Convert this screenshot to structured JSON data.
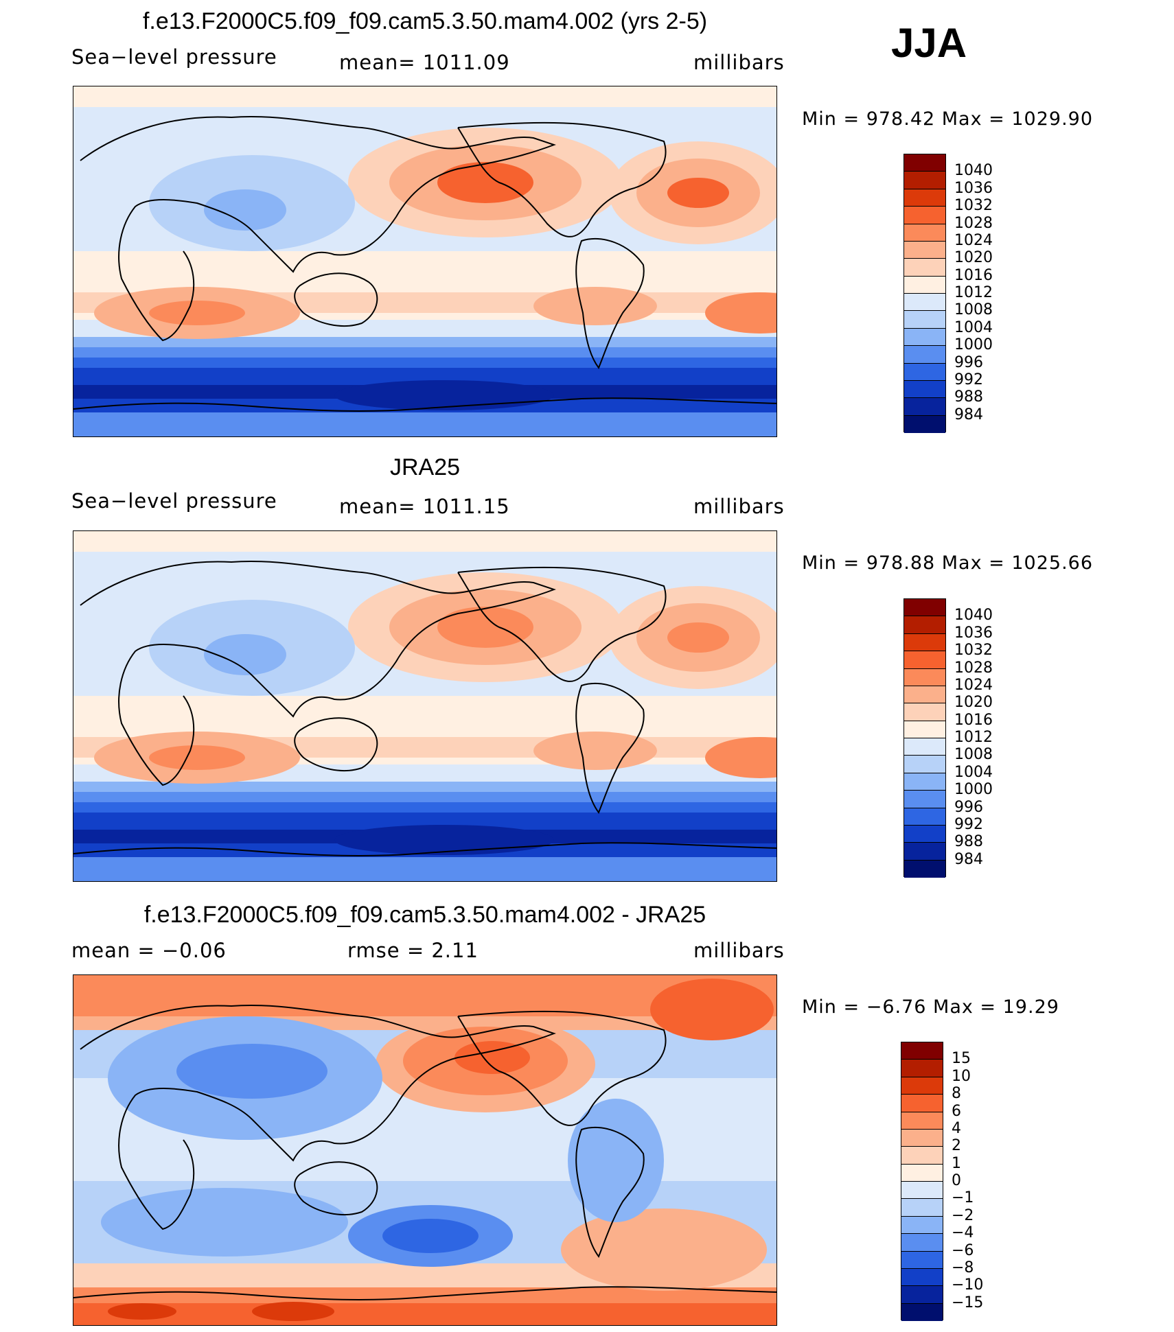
{
  "season": "JJA",
  "chart_data": [
    {
      "type": "heatmap",
      "title": "f.e13.F2000C5.f09_f09.cam5.3.50.mam4.002 (yrs 2-5)",
      "left_label": "Sea−level pressure",
      "center_label": "mean=  1011.09",
      "units": "millibars",
      "min_max": "Min  =  978.42  Max  =  1029.90",
      "colorbar_levels": [
        "1040",
        "1036",
        "1032",
        "1028",
        "1024",
        "1020",
        "1016",
        "1012",
        "1008",
        "1004",
        "1000",
        "996",
        "992",
        "988",
        "984"
      ],
      "colors": [
        "#800000",
        "#b31e00",
        "#dc3a0a",
        "#f6622f",
        "#fb8a5a",
        "#fbb08b",
        "#fdd2b9",
        "#fff0e2",
        "#dce9fa",
        "#b7d2f8",
        "#8ab4f6",
        "#5a8ef0",
        "#2e66e3",
        "#1240c8",
        "#07239d",
        "#000f6e"
      ]
    },
    {
      "type": "heatmap",
      "title": "JRA25",
      "left_label": "Sea−level pressure",
      "center_label": "mean=  1011.15",
      "units": "millibars",
      "min_max": "Min  =  978.88  Max  =  1025.66",
      "colorbar_levels": [
        "1040",
        "1036",
        "1032",
        "1028",
        "1024",
        "1020",
        "1016",
        "1012",
        "1008",
        "1004",
        "1000",
        "996",
        "992",
        "988",
        "984"
      ],
      "colors": [
        "#800000",
        "#b31e00",
        "#dc3a0a",
        "#f6622f",
        "#fb8a5a",
        "#fbb08b",
        "#fdd2b9",
        "#fff0e2",
        "#dce9fa",
        "#b7d2f8",
        "#8ab4f6",
        "#5a8ef0",
        "#2e66e3",
        "#1240c8",
        "#07239d",
        "#000f6e"
      ]
    },
    {
      "type": "heatmap",
      "title": "f.e13.F2000C5.f09_f09.cam5.3.50.mam4.002 - JRA25",
      "left_label": "mean  =    −0.06",
      "center_label": "rmse  =     2.11",
      "units": "millibars",
      "min_max": "Min  =    −6.76  Max  =    19.29",
      "colorbar_levels": [
        "15",
        "10",
        "8",
        "6",
        "4",
        "2",
        "1",
        "0",
        "−1",
        "−2",
        "−4",
        "−6",
        "−8",
        "−10",
        "−15"
      ],
      "colors": [
        "#800000",
        "#b31e00",
        "#dc3a0a",
        "#f6622f",
        "#fb8a5a",
        "#fbb08b",
        "#fdd2b9",
        "#fff0e2",
        "#dce9fa",
        "#b7d2f8",
        "#8ab4f6",
        "#5a8ef0",
        "#2e66e3",
        "#1240c8",
        "#07239d",
        "#000f6e"
      ]
    }
  ]
}
